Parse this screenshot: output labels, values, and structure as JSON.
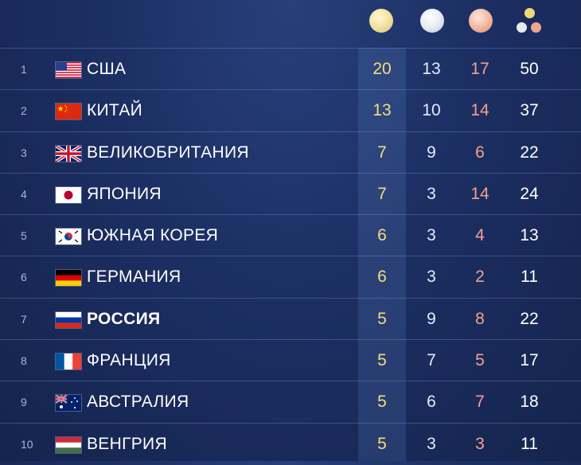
{
  "header": {
    "icons": [
      "gold-medal-icon",
      "silver-medal-icon",
      "bronze-medal-icon",
      "total-medals-icon"
    ]
  },
  "colors": {
    "gold": "#f4dd7e",
    "silver": "#e6ebf5",
    "bronze": "#f4a08e",
    "total": "#ffffff"
  },
  "rows": [
    {
      "rank": "1",
      "country": "США",
      "flag": "usa-flag-icon",
      "gold": "20",
      "silver": "13",
      "bronze": "17",
      "total": "50"
    },
    {
      "rank": "2",
      "country": "КИТАЙ",
      "flag": "china-flag-icon",
      "gold": "13",
      "silver": "10",
      "bronze": "14",
      "total": "37"
    },
    {
      "rank": "3",
      "country": "ВЕЛИКОБРИТАНИЯ",
      "flag": "uk-flag-icon",
      "gold": "7",
      "silver": "9",
      "bronze": "6",
      "total": "22"
    },
    {
      "rank": "4",
      "country": "ЯПОНИЯ",
      "flag": "japan-flag-icon",
      "gold": "7",
      "silver": "3",
      "bronze": "14",
      "total": "24"
    },
    {
      "rank": "5",
      "country": "ЮЖНАЯ КОРЕЯ",
      "flag": "south-korea-flag-icon",
      "gold": "6",
      "silver": "3",
      "bronze": "4",
      "total": "13"
    },
    {
      "rank": "6",
      "country": "ГЕРМАНИЯ",
      "flag": "germany-flag-icon",
      "gold": "6",
      "silver": "3",
      "bronze": "2",
      "total": "11"
    },
    {
      "rank": "7",
      "country": "РОССИЯ",
      "flag": "russia-flag-icon",
      "gold": "5",
      "silver": "9",
      "bronze": "8",
      "total": "22"
    },
    {
      "rank": "8",
      "country": "ФРАНЦИЯ",
      "flag": "france-flag-icon",
      "gold": "5",
      "silver": "7",
      "bronze": "5",
      "total": "17"
    },
    {
      "rank": "9",
      "country": "АВСТРАЛИЯ",
      "flag": "australia-flag-icon",
      "gold": "5",
      "silver": "6",
      "bronze": "7",
      "total": "18"
    },
    {
      "rank": "10",
      "country": "ВЕНГРИЯ",
      "flag": "hungary-flag-icon",
      "gold": "5",
      "silver": "3",
      "bronze": "3",
      "total": "11"
    }
  ]
}
